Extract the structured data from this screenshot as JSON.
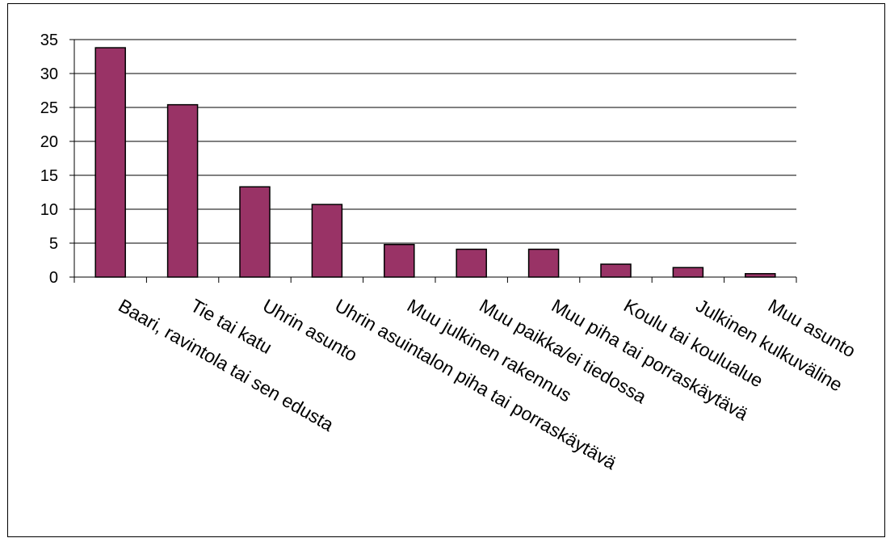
{
  "chart_data": {
    "type": "bar",
    "categories": [
      "Baari, ravintola tai sen edusta",
      "Tie tai katu",
      "Uhrin asunto",
      "Uhrin asuintalon piha tai porraskäytävä",
      "Muu julkinen rakennus",
      "Muu paikka/ei tiedossa",
      "Muu piha tai porraskäytävä",
      "Koulu tai koulualue",
      "Julkinen kulkuväline",
      "Muu asunto"
    ],
    "values": [
      33.8,
      25.4,
      13.3,
      10.7,
      4.8,
      4.1,
      4.1,
      1.9,
      1.4,
      0.5
    ],
    "yticks": [
      0,
      5,
      10,
      15,
      20,
      25,
      30,
      35
    ],
    "ylim": [
      0,
      35
    ],
    "grid": true,
    "legend": "none",
    "colors": {
      "bar_fill": "#993366",
      "bar_stroke": "#000000",
      "grid": "#000000",
      "background": "#ffffff"
    }
  }
}
